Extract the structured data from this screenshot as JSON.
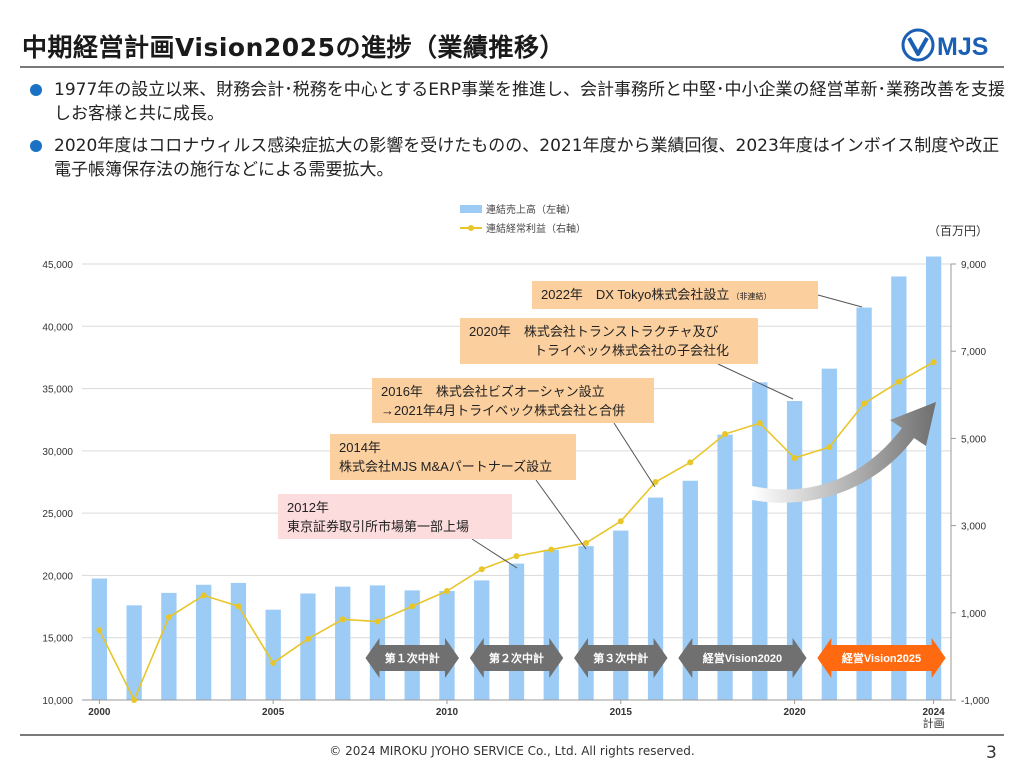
{
  "header": {
    "title": "中期経営計画Vision2025の進捗（業績推移）",
    "logo_text": "MJS"
  },
  "bullets": [
    "1977年の設立以来、財務会計･税務を中心とするERP事業を推進し、会計事務所と中堅･中小企業の経営革新･業務改善を支援しお客様と共に成長。",
    "2020年度はコロナウィルス感染症拡大の影響を受けたものの、2021年度から業績回復、2023年度はインボイス制度や改正電子帳簿保存法の施行などによる需要拡大。"
  ],
  "unit_label": "（百万円）",
  "footer": {
    "copyright": "© 2024 MIROKU JYOHO SERVICE Co., Ltd. All rights reserved.",
    "page": "3"
  },
  "colors": {
    "bar": "#9ccbf5",
    "line": "#e8c62a",
    "callout_orange": "#fbcf9e",
    "callout_pink": "#fcdcdc",
    "arrow_gray": "#707070",
    "arrow_orange": "#ff6a10",
    "bullet": "#1a72c4"
  },
  "chart_data": {
    "type": "bar",
    "x": [
      "2000",
      "2001",
      "2002",
      "2003",
      "2004",
      "2005",
      "2006",
      "2007",
      "2008",
      "2009",
      "2010",
      "2011",
      "2012",
      "2013",
      "2014",
      "2015",
      "2016",
      "2017",
      "2018",
      "2019",
      "2020",
      "2021",
      "2022",
      "2023",
      "2024"
    ],
    "x_tick_labels": [
      "2000",
      "2005",
      "2010",
      "2015",
      "2020",
      "2024"
    ],
    "x_sublabel": "計画",
    "series": [
      {
        "name": "連結売上高（左軸）",
        "axis": "left",
        "kind": "bar",
        "values": [
          19750,
          17600,
          18600,
          19250,
          19400,
          17250,
          18550,
          19100,
          19200,
          18800,
          18750,
          19600,
          20950,
          22050,
          22350,
          23600,
          26250,
          27600,
          31300,
          35500,
          34000,
          36600,
          41500,
          44000,
          45600
        ]
      },
      {
        "name": "連結経常利益（右軸）",
        "axis": "right",
        "kind": "line",
        "values": [
          600,
          -1000,
          900,
          1400,
          1150,
          -150,
          400,
          850,
          800,
          1150,
          1500,
          2000,
          2300,
          2450,
          2600,
          3100,
          4000,
          4450,
          5100,
          5350,
          4550,
          4800,
          5800,
          6300,
          6750
        ]
      }
    ],
    "y_left": {
      "min": 10000,
      "max": 45000,
      "ticks": [
        "10,000",
        "15,000",
        "20,000",
        "25,000",
        "30,000",
        "35,000",
        "40,000",
        "45,000"
      ]
    },
    "y_right": {
      "min": -1000,
      "max": 9000,
      "ticks": [
        "-1,000",
        "1,000",
        "3,000",
        "5,000",
        "7,000",
        "9,000"
      ]
    },
    "annotations": [
      {
        "lines": [
          "2012年",
          "東京証券取引所市場第一部上場"
        ],
        "year": "2012",
        "style": "pink"
      },
      {
        "lines": [
          "2014年",
          "株式会社MJS M&Aパートナーズ設立"
        ],
        "year": "2014",
        "style": "orange"
      },
      {
        "lines": [
          "2016年　株式会社ビズオーシャン設立",
          "→2021年4月トライベック株式会社と合併"
        ],
        "year": "2016",
        "style": "orange"
      },
      {
        "lines": [
          "2020年　株式会社トランストラクチャ及び",
          "　　　　　トライベック株式会社の子会社化"
        ],
        "year": "2020",
        "style": "orange"
      },
      {
        "lines": [
          "2022年　DX Tokyo株式会社設立"
        ],
        "suffix": "（非連結）",
        "year": "2022",
        "style": "orange"
      }
    ],
    "phases": [
      {
        "label": "第１次中計",
        "from": "2008",
        "to": "2010",
        "color": "gray"
      },
      {
        "label": "第２次中計",
        "from": "2011",
        "to": "2013",
        "color": "gray"
      },
      {
        "label": "第３次中計",
        "from": "2014",
        "to": "2016",
        "color": "gray"
      },
      {
        "label": "経営Vision2020",
        "from": "2017",
        "to": "2020",
        "color": "gray"
      },
      {
        "label": "経営Vision2025",
        "from": "2021",
        "to": "2024",
        "color": "orange"
      }
    ]
  }
}
